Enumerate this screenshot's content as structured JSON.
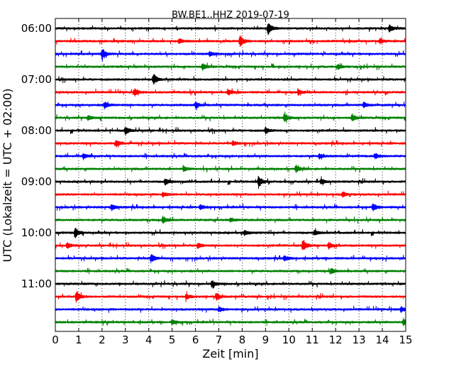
{
  "chart_data": {
    "type": "line",
    "title": "BW.BE1..HHZ 2019-07-19",
    "xlabel": "Zeit  [min]",
    "ylabel": "UTC (Lokalzeit = UTC + 02:00)",
    "xlim": [
      0,
      15
    ],
    "x_ticks": [
      0,
      1,
      2,
      3,
      4,
      5,
      6,
      7,
      8,
      9,
      10,
      11,
      12,
      13,
      14,
      15
    ],
    "x_tick_labels": [
      "0",
      "1",
      "2",
      "3",
      "4",
      "5",
      "6",
      "7",
      "8",
      "9",
      "10",
      "11",
      "12",
      "13",
      "14",
      "15"
    ],
    "y_tick_labels": [
      "06:00",
      "07:00",
      "08:00",
      "09:00",
      "10:00",
      "11:00"
    ],
    "grid": "vertical-dotted",
    "row_interval_min": 15,
    "color_cycle": [
      "#000000",
      "#ff0000",
      "#0000ff",
      "#008000"
    ],
    "traces": [
      {
        "start": "06:00",
        "color": "#000000",
        "events": [
          {
            "t": 9.1,
            "amp": 1.0
          },
          {
            "t": 14.3,
            "amp": 0.6
          }
        ]
      },
      {
        "start": "06:15",
        "color": "#ff0000",
        "events": [
          {
            "t": 7.9,
            "amp": 1.0
          },
          {
            "t": 5.3,
            "amp": 0.45
          },
          {
            "t": 13.9,
            "amp": 0.4
          }
        ]
      },
      {
        "start": "06:30",
        "color": "#0000ff",
        "events": [
          {
            "t": 2.0,
            "amp": 0.9
          },
          {
            "t": 6.6,
            "amp": 0.4
          }
        ]
      },
      {
        "start": "06:45",
        "color": "#008000",
        "events": [
          {
            "t": 6.3,
            "amp": 0.55
          },
          {
            "t": 12.1,
            "amp": 0.4
          }
        ]
      },
      {
        "start": "07:00",
        "color": "#000000",
        "events": [
          {
            "t": 4.2,
            "amp": 1.0
          }
        ]
      },
      {
        "start": "07:15",
        "color": "#ff0000",
        "events": [
          {
            "t": 3.4,
            "amp": 0.6
          },
          {
            "t": 7.4,
            "amp": 0.5
          },
          {
            "t": 10.4,
            "amp": 0.45
          }
        ]
      },
      {
        "start": "07:30",
        "color": "#0000ff",
        "events": [
          {
            "t": 2.1,
            "amp": 0.6
          },
          {
            "t": 6.0,
            "amp": 0.5
          },
          {
            "t": 13.2,
            "amp": 0.45
          }
        ]
      },
      {
        "start": "07:45",
        "color": "#008000",
        "events": [
          {
            "t": 9.8,
            "amp": 0.7
          },
          {
            "t": 12.7,
            "amp": 0.6
          },
          {
            "t": 1.4,
            "amp": 0.4
          }
        ]
      },
      {
        "start": "08:00",
        "color": "#000000",
        "events": [
          {
            "t": 3.0,
            "amp": 0.7
          },
          {
            "t": 9.0,
            "amp": 0.5
          }
        ]
      },
      {
        "start": "08:15",
        "color": "#ff0000",
        "events": [
          {
            "t": 2.6,
            "amp": 0.6
          },
          {
            "t": 7.6,
            "amp": 0.4
          }
        ]
      },
      {
        "start": "08:30",
        "color": "#0000ff",
        "events": [
          {
            "t": 1.2,
            "amp": 0.45
          },
          {
            "t": 11.3,
            "amp": 0.45
          },
          {
            "t": 13.7,
            "amp": 0.45
          }
        ]
      },
      {
        "start": "08:45",
        "color": "#008000",
        "events": [
          {
            "t": 10.3,
            "amp": 0.65
          },
          {
            "t": 5.5,
            "amp": 0.4
          }
        ]
      },
      {
        "start": "09:00",
        "color": "#000000",
        "events": [
          {
            "t": 8.7,
            "amp": 1.0
          },
          {
            "t": 4.7,
            "amp": 0.55
          },
          {
            "t": 11.4,
            "amp": 0.45
          }
        ]
      },
      {
        "start": "09:15",
        "color": "#ff0000",
        "events": [
          {
            "t": 12.3,
            "amp": 0.45
          },
          {
            "t": 4.6,
            "amp": 0.4
          }
        ]
      },
      {
        "start": "09:30",
        "color": "#0000ff",
        "events": [
          {
            "t": 2.4,
            "amp": 0.55
          },
          {
            "t": 13.6,
            "amp": 0.65
          },
          {
            "t": 6.2,
            "amp": 0.4
          }
        ]
      },
      {
        "start": "09:45",
        "color": "#008000",
        "events": [
          {
            "t": 4.6,
            "amp": 0.6
          },
          {
            "t": 7.5,
            "amp": 0.4
          }
        ]
      },
      {
        "start": "10:00",
        "color": "#000000",
        "events": [
          {
            "t": 0.85,
            "amp": 0.9
          },
          {
            "t": 8.1,
            "amp": 0.4
          },
          {
            "t": 11.1,
            "amp": 0.4
          }
        ]
      },
      {
        "start": "10:15",
        "color": "#ff0000",
        "events": [
          {
            "t": 10.6,
            "amp": 1.0
          },
          {
            "t": 11.7,
            "amp": 0.6
          },
          {
            "t": 0.5,
            "amp": 0.5
          },
          {
            "t": 6.1,
            "amp": 0.45
          }
        ]
      },
      {
        "start": "10:30",
        "color": "#0000ff",
        "events": [
          {
            "t": 4.1,
            "amp": 0.75
          },
          {
            "t": 9.8,
            "amp": 0.45
          }
        ]
      },
      {
        "start": "10:45",
        "color": "#008000",
        "events": [
          {
            "t": 11.8,
            "amp": 0.45
          }
        ]
      },
      {
        "start": "11:00",
        "color": "#000000",
        "events": [
          {
            "t": 6.7,
            "amp": 0.55
          }
        ]
      },
      {
        "start": "11:15",
        "color": "#ff0000",
        "events": [
          {
            "t": 0.9,
            "amp": 1.0
          },
          {
            "t": 5.6,
            "amp": 0.5
          },
          {
            "t": 6.9,
            "amp": 0.55
          }
        ]
      },
      {
        "start": "11:30",
        "color": "#0000ff",
        "events": [
          {
            "t": 7.0,
            "amp": 0.45
          },
          {
            "t": 14.8,
            "amp": 0.45
          }
        ]
      },
      {
        "start": "11:45",
        "color": "#008000",
        "events": [
          {
            "t": 5.0,
            "amp": 0.4
          },
          {
            "t": 14.9,
            "amp": 0.55
          }
        ]
      }
    ]
  }
}
